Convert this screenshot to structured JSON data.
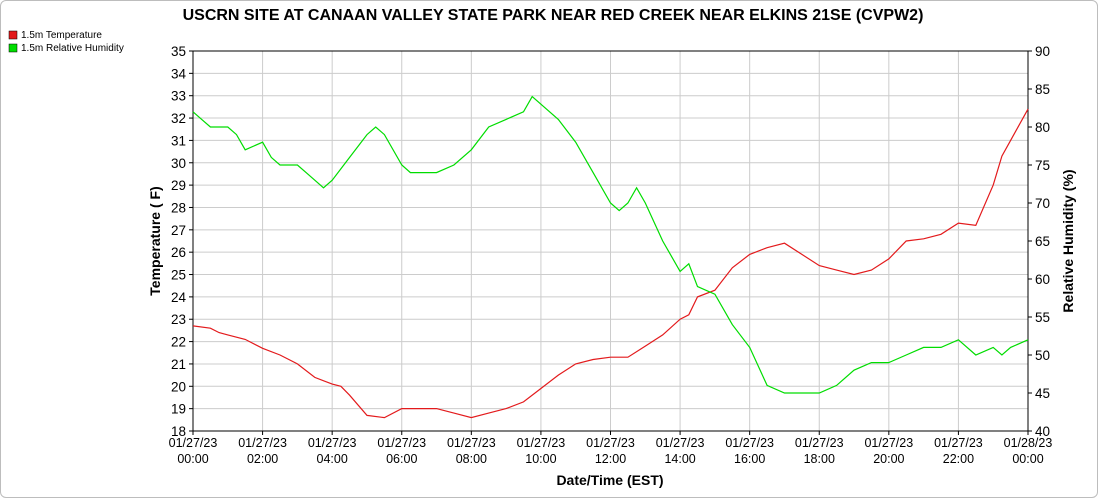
{
  "chart_data": {
    "type": "line",
    "title": "USCRN SITE AT CANAAN VALLEY STATE PARK NEAR RED CREEK NEAR ELKINS 21SE (CVPW2)",
    "xlabel": "Date/Time (EST)",
    "ylabel_left": "Temperature ( F)",
    "ylabel_right": "Relative Humidity (%)",
    "legend_placement": "top-left",
    "grid": true,
    "x_range_hours": [
      0,
      24
    ],
    "x_ticks": [
      {
        "date": "01/27/23",
        "time": "00:00"
      },
      {
        "date": "01/27/23",
        "time": "02:00"
      },
      {
        "date": "01/27/23",
        "time": "04:00"
      },
      {
        "date": "01/27/23",
        "time": "06:00"
      },
      {
        "date": "01/27/23",
        "time": "08:00"
      },
      {
        "date": "01/27/23",
        "time": "10:00"
      },
      {
        "date": "01/27/23",
        "time": "12:00"
      },
      {
        "date": "01/27/23",
        "time": "14:00"
      },
      {
        "date": "01/27/23",
        "time": "16:00"
      },
      {
        "date": "01/27/23",
        "time": "18:00"
      },
      {
        "date": "01/27/23",
        "time": "20:00"
      },
      {
        "date": "01/27/23",
        "time": "22:00"
      },
      {
        "date": "01/28/23",
        "time": "00:00"
      }
    ],
    "y_left": {
      "min": 18,
      "max": 35,
      "step": 1
    },
    "y_right": {
      "min": 40,
      "max": 90,
      "step": 5
    },
    "series": [
      {
        "name": "1.5m Temperature",
        "axis": "left",
        "color": "#e31a1c",
        "x_hours": [
          0,
          0.5,
          0.75,
          1,
          1.5,
          2,
          2.5,
          3,
          3.5,
          4,
          4.25,
          4.5,
          5,
          5.5,
          6,
          6.5,
          7,
          7.5,
          8,
          8.5,
          9,
          9.5,
          10,
          10.5,
          11,
          11.5,
          12,
          12.5,
          13,
          13.5,
          14,
          14.25,
          14.5,
          15,
          15.5,
          16,
          16.5,
          17,
          17.5,
          18,
          18.5,
          19,
          19.5,
          20,
          20.5,
          21,
          21.5,
          22,
          22.5,
          23,
          23.25,
          23.5,
          24
        ],
        "values": [
          22.7,
          22.6,
          22.4,
          22.3,
          22.1,
          21.7,
          21.4,
          21.0,
          20.4,
          20.1,
          20.0,
          19.6,
          18.7,
          18.6,
          19.0,
          19.0,
          19.0,
          18.8,
          18.6,
          18.8,
          19.0,
          19.3,
          19.9,
          20.5,
          21.0,
          21.2,
          21.3,
          21.3,
          21.8,
          22.3,
          23.0,
          23.2,
          24.0,
          24.3,
          25.3,
          25.9,
          26.2,
          26.4,
          25.9,
          25.4,
          25.2,
          25.0,
          25.2,
          25.7,
          26.5,
          26.6,
          26.8,
          27.3,
          27.2,
          29.0,
          30.3,
          31.0,
          32.4
        ]
      },
      {
        "name": "1.5m Relative Humidity",
        "axis": "right",
        "color": "#00dd00",
        "x_hours": [
          0,
          0.25,
          0.5,
          1,
          1.25,
          1.5,
          2,
          2.25,
          2.5,
          3,
          3.25,
          3.5,
          3.75,
          4,
          4.5,
          5,
          5.25,
          5.5,
          6,
          6.25,
          6.5,
          7,
          7.5,
          8,
          8.5,
          9,
          9.5,
          9.75,
          10,
          10.5,
          11,
          11.5,
          12,
          12.25,
          12.5,
          12.75,
          13,
          13.5,
          14,
          14.25,
          14.5,
          15,
          15.5,
          16,
          16.5,
          17,
          17.5,
          18,
          18.5,
          19,
          19.5,
          20,
          20.5,
          21,
          21.5,
          22,
          22.5,
          23,
          23.25,
          23.5,
          24
        ],
        "values": [
          82,
          81,
          80,
          80,
          79,
          77,
          78,
          76,
          75,
          75,
          74,
          73,
          72,
          73,
          76,
          79,
          80,
          79,
          75,
          74,
          74,
          74,
          75,
          77,
          80,
          81,
          82,
          84,
          83,
          81,
          78,
          74,
          70,
          69,
          70,
          72,
          70,
          65,
          61,
          62,
          59,
          58,
          54,
          51,
          46,
          45,
          45,
          45,
          46,
          48,
          49,
          49,
          50,
          51,
          51,
          52,
          50,
          51,
          50,
          51,
          52
        ]
      }
    ]
  }
}
